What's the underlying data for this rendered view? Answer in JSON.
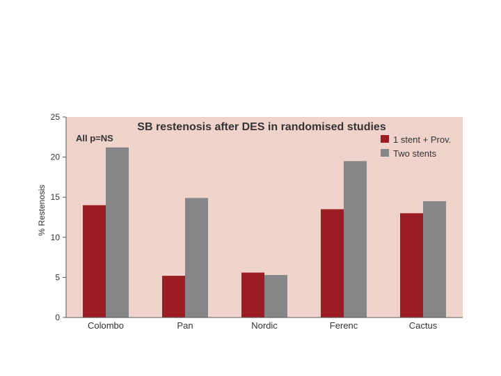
{
  "chart_data": {
    "type": "bar",
    "title": "SB restenosis after DES in randomised studies",
    "annotation": "All p=NS",
    "ylabel": "% Restenosis",
    "xlabel": "",
    "ylim": [
      0,
      25
    ],
    "yticks": [
      0,
      5,
      10,
      15,
      20,
      25
    ],
    "categories": [
      "Colombo",
      "Pan",
      "Nordic",
      "Ferenc",
      "Cactus"
    ],
    "series": [
      {
        "name": "1 stent + Prov.",
        "color": "#9b1c22",
        "values": [
          14,
          5.2,
          5.6,
          13.5,
          13
        ]
      },
      {
        "name": "Two stents",
        "color": "#868689",
        "values": [
          21.2,
          14.9,
          5.3,
          19.5,
          14.5
        ]
      }
    ],
    "legend_position": "top-right",
    "plot_background": "#efd3ca",
    "grid": false
  }
}
